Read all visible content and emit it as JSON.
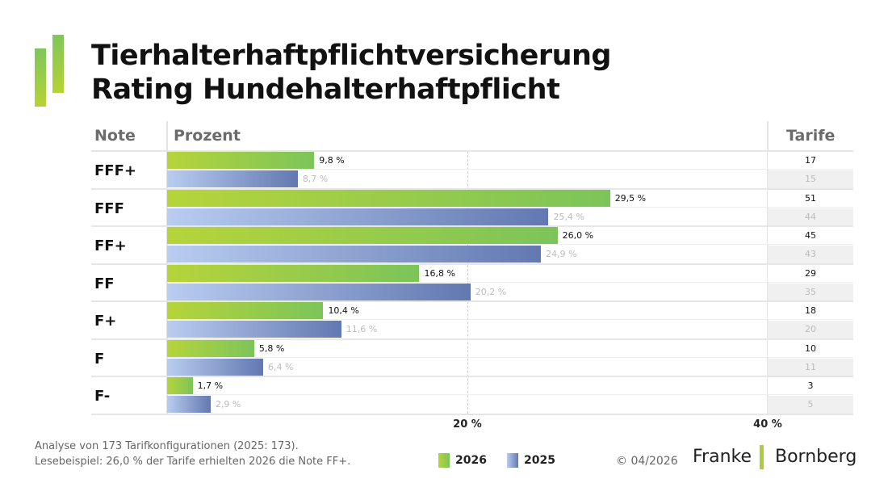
{
  "title_lines": [
    "Tierhalterhaftpflichtversicherung",
    "Rating Hundehalterhaftpflicht"
  ],
  "chart_data": {
    "type": "bar",
    "orientation": "horizontal",
    "columns": {
      "note": "Note",
      "percent": "Prozent",
      "tarife": "Tarife"
    },
    "categories": [
      "FFF+",
      "FFF",
      "FF+",
      "FF",
      "F+",
      "F",
      "F-"
    ],
    "series": [
      {
        "name": "2026",
        "values": [
          9.8,
          29.5,
          26.0,
          16.8,
          10.4,
          5.8,
          1.7
        ],
        "labels": [
          "9,8 %",
          "29,5 %",
          "26,0 %",
          "16,8 %",
          "10,4 %",
          "5,8 %",
          "1,7 %"
        ],
        "tarife": [
          "17",
          "51",
          "45",
          "29",
          "18",
          "10",
          "3"
        ],
        "color": "#8dc850"
      },
      {
        "name": "2025",
        "values": [
          8.7,
          25.4,
          24.9,
          20.2,
          11.6,
          6.4,
          2.9
        ],
        "labels": [
          "8,7 %",
          "25,4 %",
          "24,9 %",
          "20,2 %",
          "11,6 %",
          "6,4 %",
          "2,9 %"
        ],
        "tarife": [
          "15",
          "44",
          "43",
          "35",
          "20",
          "11",
          "5"
        ],
        "color": "#7a8fc4"
      }
    ],
    "xlim": [
      0,
      45
    ],
    "xticks": [
      {
        "value": 20,
        "label": "20 %"
      },
      {
        "value": 40,
        "label": "40 %"
      }
    ],
    "reference_line": 20,
    "legend": "bottom"
  },
  "footer": {
    "note1": "Analyse von 173 Tarifkonfigurationen (2025: 173).",
    "note2": "Lesebeispiel: 26,0 % der Tarife erhielten 2026 die Note FF+.",
    "copyright": "© 04/2026",
    "brand": "Franke Bornberg"
  }
}
